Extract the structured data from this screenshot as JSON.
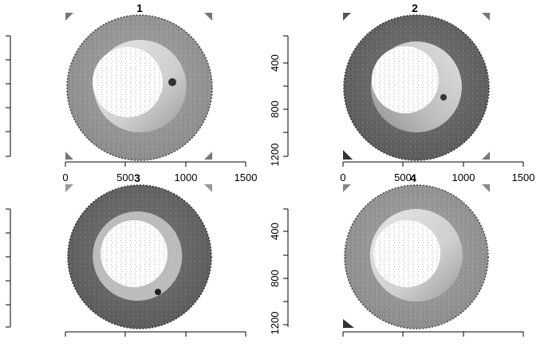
{
  "panels": [
    {
      "title": "1",
      "y_ticks": [],
      "x_ticks": [
        "0",
        "500",
        "1000",
        "1500"
      ]
    },
    {
      "title": "2",
      "y_ticks": [
        "400",
        "800",
        "1200"
      ],
      "x_ticks": [
        "0",
        "500",
        "1000",
        "1500"
      ]
    },
    {
      "title": "3",
      "y_ticks": [],
      "x_ticks": []
    },
    {
      "title": "4",
      "y_ticks": [
        "400",
        "800",
        "1200"
      ],
      "x_ticks": []
    }
  ],
  "colors": {
    "background": "#ffffff",
    "axis": "#000000",
    "ring_dark": "#555555",
    "ring_mid": "#8a8a8a",
    "ring_light": "#d8d8d8"
  }
}
